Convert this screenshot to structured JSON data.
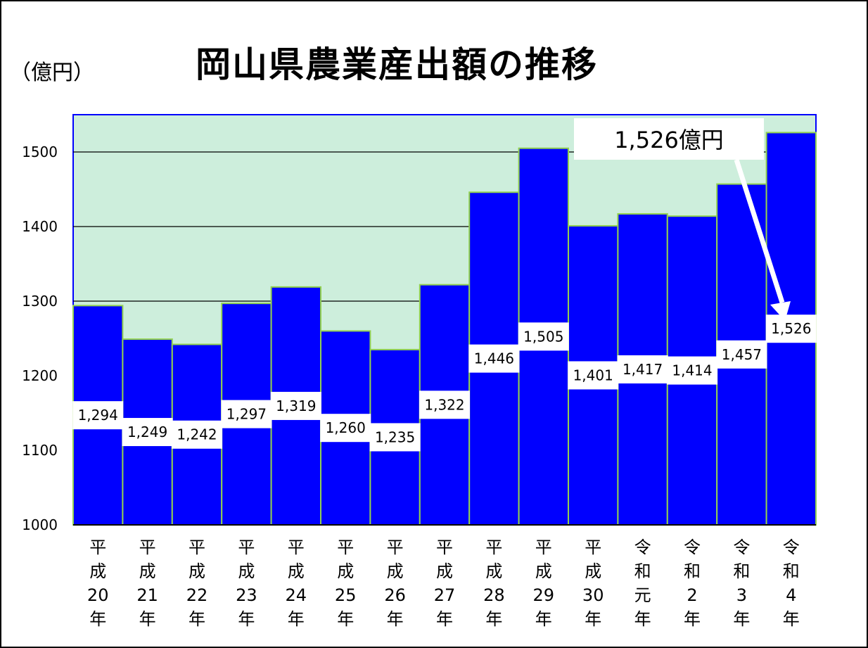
{
  "chart_data": {
    "type": "bar",
    "title": "岡山県農業産出額の推移",
    "ylabel": "（億円）",
    "ylim": [
      1000,
      1550
    ],
    "yticks": [
      "1000",
      "1100",
      "1200",
      "1300",
      "1400",
      "1500"
    ],
    "grid": true,
    "categories": [
      [
        "平",
        "成",
        "20",
        "年"
      ],
      [
        "平",
        "成",
        "21",
        "年"
      ],
      [
        "平",
        "成",
        "22",
        "年"
      ],
      [
        "平",
        "成",
        "23",
        "年"
      ],
      [
        "平",
        "成",
        "24",
        "年"
      ],
      [
        "平",
        "成",
        "25",
        "年"
      ],
      [
        "平",
        "成",
        "26",
        "年"
      ],
      [
        "平",
        "成",
        "27",
        "年"
      ],
      [
        "平",
        "成",
        "28",
        "年"
      ],
      [
        "平",
        "成",
        "29",
        "年"
      ],
      [
        "平",
        "成",
        "30",
        "年"
      ],
      [
        "令",
        "和",
        "元",
        "年"
      ],
      [
        "令",
        "和",
        "2",
        "年"
      ],
      [
        "令",
        "和",
        "3",
        "年"
      ],
      [
        "令",
        "和",
        "4",
        "年"
      ]
    ],
    "values": [
      1294,
      1249,
      1242,
      1297,
      1319,
      1260,
      1235,
      1322,
      1446,
      1505,
      1401,
      1417,
      1414,
      1457,
      1526
    ],
    "data_labels": [
      "1,294",
      "1,249",
      "1,242",
      "1,297",
      "1,319",
      "1,260",
      "1,235",
      "1,322",
      "1,446",
      "1,505",
      "1,401",
      "1,417",
      "1,414",
      "1,457",
      "1,526"
    ],
    "annotation": "1,526億円",
    "colors": {
      "bar": "#0000ff",
      "bar_edge": "#92d050",
      "plot_bg": "#cdeedc",
      "plot_border": "#0000ff"
    }
  }
}
